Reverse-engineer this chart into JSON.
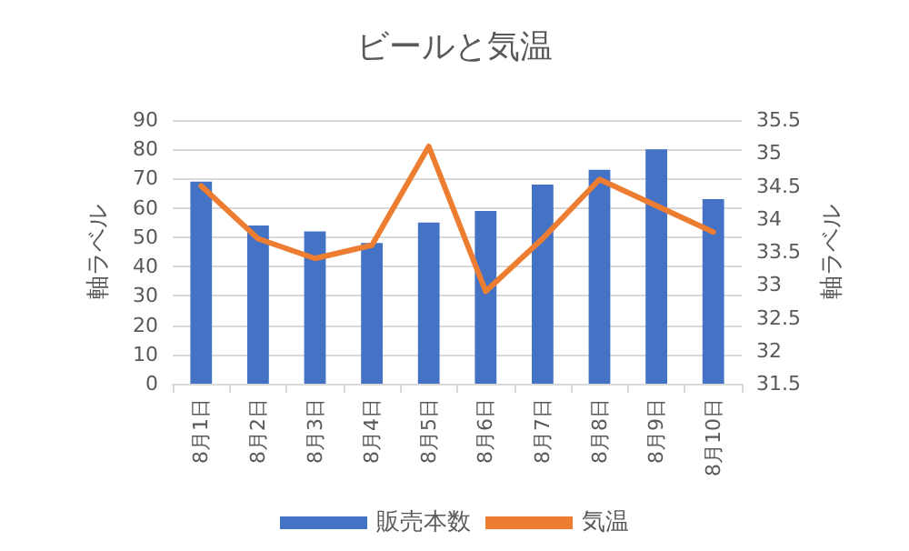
{
  "chart_data": {
    "type": "bar",
    "title": "ビールと気温",
    "ylabel": "軸ラベル",
    "y2label": "軸ラベル",
    "categories": [
      "8月1日",
      "8月2日",
      "8月3日",
      "8月4日",
      "8月5日",
      "8月6日",
      "8月7日",
      "8月8日",
      "8月9日",
      "8月10日"
    ],
    "series": [
      {
        "name": "販売本数",
        "color": "#4472c4",
        "values": [
          69,
          54,
          52,
          48,
          55,
          59,
          68,
          73,
          80,
          63
        ]
      },
      {
        "name": "気温",
        "type": "line",
        "axis": "y2",
        "color": "#ed7d31",
        "values": [
          34.5,
          33.7,
          33.4,
          33.6,
          35.1,
          32.9,
          33.7,
          34.6,
          34.2,
          33.8
        ]
      }
    ],
    "ylim": [
      0,
      90
    ],
    "yticks": [
      0,
      10,
      20,
      30,
      40,
      50,
      60,
      70,
      80,
      90
    ],
    "y2lim": [
      31.5,
      35.5
    ],
    "y2ticks": [
      31.5,
      32,
      32.5,
      33,
      33.5,
      34,
      34.5,
      35,
      35.5
    ],
    "grid": "y",
    "legend": "bottom",
    "marker": "none"
  }
}
